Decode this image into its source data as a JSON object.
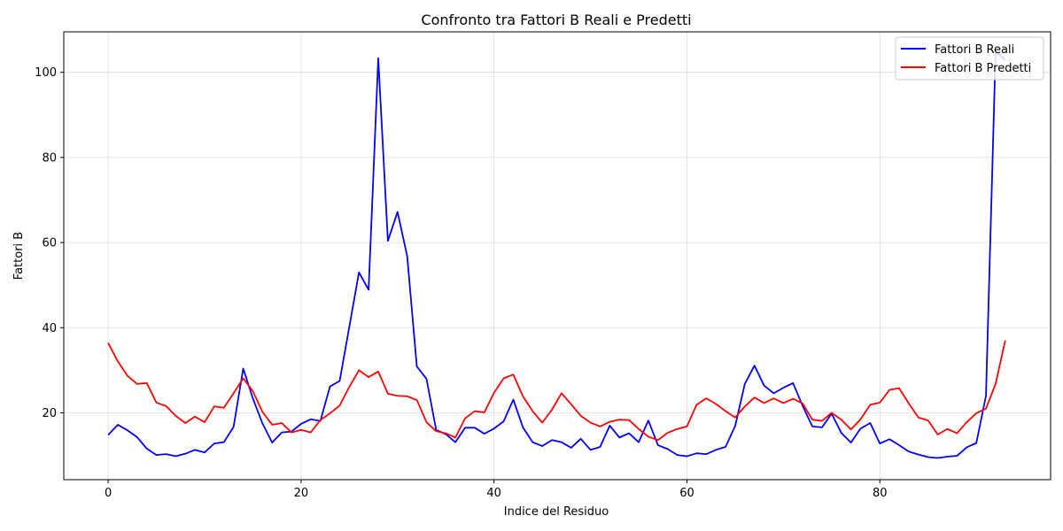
{
  "chart_data": {
    "type": "line",
    "title": "Confronto tra Fattori B Reali e Predetti",
    "xlabel": "Indice del Residuo",
    "ylabel": "Fattori B",
    "xlim": [
      -4.6,
      97.7
    ],
    "ylim": [
      4.3,
      109.5
    ],
    "xticks": [
      0,
      20,
      40,
      60,
      80
    ],
    "yticks": [
      20,
      40,
      60,
      80,
      100
    ],
    "grid": true,
    "legend_position": "top-right",
    "series": [
      {
        "name": "Fattori B Reali",
        "color": "#0000ff",
        "x": [
          0,
          1,
          2,
          3,
          4,
          5,
          6,
          7,
          8,
          9,
          10,
          11,
          12,
          13,
          14,
          15,
          16,
          17,
          18,
          19,
          20,
          21,
          22,
          23,
          24,
          25,
          26,
          27,
          28,
          29,
          30,
          31,
          32,
          33,
          34,
          35,
          36,
          37,
          38,
          39,
          40,
          41,
          42,
          43,
          44,
          45,
          46,
          47,
          48,
          49,
          50,
          51,
          52,
          53,
          54,
          55,
          56,
          57,
          58,
          59,
          60,
          61,
          62,
          63,
          64,
          65,
          66,
          67,
          68,
          69,
          70,
          71,
          72,
          73,
          74,
          75,
          76,
          77,
          78,
          79,
          80,
          81,
          82,
          83,
          84,
          85,
          86,
          87,
          88,
          89,
          90,
          91,
          92,
          93
        ],
        "values": [
          14.8,
          17.2,
          15.9,
          14.3,
          11.6,
          10.1,
          10.3,
          9.8,
          10.4,
          11.3,
          10.7,
          12.8,
          13.1,
          16.7,
          30.4,
          23.4,
          17.5,
          13.0,
          15.4,
          15.6,
          17.4,
          18.5,
          18.1,
          26.2,
          27.5,
          40.2,
          53.0,
          48.9,
          103.3,
          60.4,
          67.2,
          56.8,
          30.9,
          28.0,
          16.0,
          15.0,
          13.1,
          16.5,
          16.5,
          15.1,
          16.3,
          18.0,
          23.1,
          16.6,
          13.1,
          12.2,
          13.6,
          13.1,
          11.8,
          13.9,
          11.3,
          12.0,
          17.0,
          14.2,
          15.2,
          13.1,
          18.2,
          12.4,
          11.5,
          10.1,
          9.8,
          10.5,
          10.3,
          11.3,
          12.0,
          16.9,
          26.8,
          31.1,
          26.4,
          24.6,
          25.9,
          27.0,
          21.6,
          16.8,
          16.6,
          19.8,
          15.3,
          13.0,
          16.3,
          17.6,
          12.8,
          13.8,
          12.4,
          10.9,
          10.2,
          9.6,
          9.4,
          9.7,
          9.9,
          11.9,
          12.9,
          24.0,
          105.0,
          102.8
        ]
      },
      {
        "name": "Fattori B Predetti",
        "color": "#ff0000",
        "x": [
          0,
          1,
          2,
          3,
          4,
          5,
          6,
          7,
          8,
          9,
          10,
          11,
          12,
          13,
          14,
          15,
          16,
          17,
          18,
          19,
          20,
          21,
          22,
          23,
          24,
          25,
          26,
          27,
          28,
          29,
          30,
          31,
          32,
          33,
          34,
          35,
          36,
          37,
          38,
          39,
          40,
          41,
          42,
          43,
          44,
          45,
          46,
          47,
          48,
          49,
          50,
          51,
          52,
          53,
          54,
          55,
          56,
          57,
          58,
          59,
          60,
          61,
          62,
          63,
          64,
          65,
          66,
          67,
          68,
          69,
          70,
          71,
          72,
          73,
          74,
          75,
          76,
          77,
          78,
          79,
          80,
          81,
          82,
          83,
          84,
          85,
          86,
          87,
          88,
          89,
          90,
          91,
          92,
          93
        ],
        "values": [
          36.4,
          32.1,
          28.7,
          26.8,
          27.0,
          22.4,
          21.6,
          19.3,
          17.6,
          19.1,
          17.8,
          21.5,
          21.2,
          24.6,
          28.1,
          25.1,
          20.2,
          17.2,
          17.6,
          15.4,
          16.0,
          15.4,
          18.3,
          19.9,
          21.7,
          26.1,
          30.0,
          28.4,
          29.7,
          24.5,
          24.0,
          23.9,
          23.0,
          17.8,
          15.7,
          15.2,
          14.2,
          18.7,
          20.4,
          20.1,
          24.7,
          28.1,
          29.0,
          23.9,
          20.4,
          17.7,
          20.7,
          24.6,
          22.0,
          19.3,
          17.7,
          16.8,
          17.9,
          18.4,
          18.3,
          16.2,
          14.4,
          13.6,
          15.3,
          16.2,
          16.8,
          21.9,
          23.4,
          22.1,
          20.4,
          18.9,
          21.5,
          23.6,
          22.3,
          23.4,
          22.3,
          23.3,
          22.2,
          18.4,
          18.1,
          20.0,
          18.4,
          16.1,
          18.5,
          21.9,
          22.4,
          25.4,
          25.8,
          22.2,
          18.9,
          18.2,
          14.9,
          16.2,
          15.2,
          17.8,
          19.9,
          21.0,
          26.8,
          37.0
        ]
      }
    ]
  }
}
